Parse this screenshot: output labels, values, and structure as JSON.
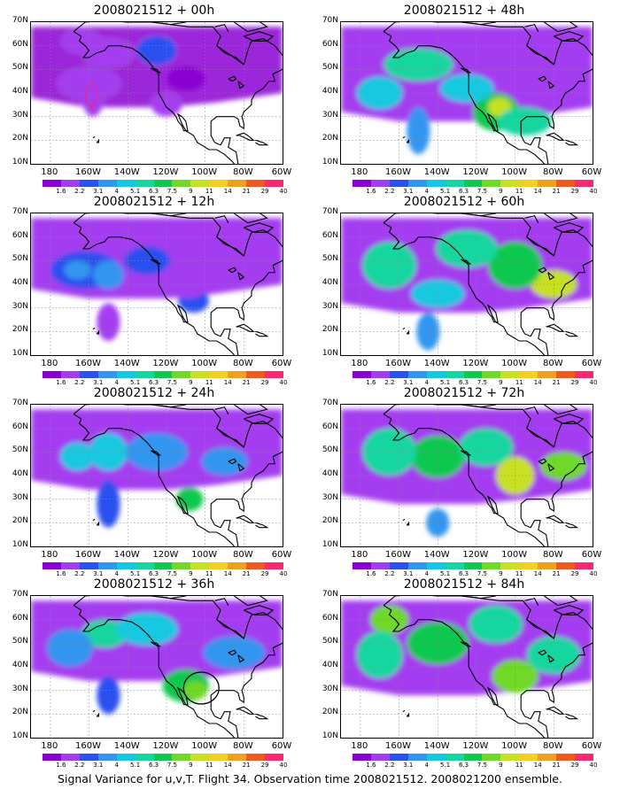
{
  "caption": "Signal Variance for u,v,T. Flight 34. Observation time 2008021512. 2008021200 ensemble.",
  "lat_labels": [
    "70N",
    "60N",
    "50N",
    "40N",
    "30N",
    "20N",
    "10N"
  ],
  "lon_labels": [
    "180",
    "160W",
    "140W",
    "120W",
    "100W",
    "80W",
    "60W"
  ],
  "colorbar": {
    "ticks": [
      "1.6",
      "2.2",
      "3.1",
      "4",
      "5.1",
      "6.3",
      "7.5",
      "9",
      "11",
      "14",
      "21",
      "29",
      "40"
    ],
    "colors": [
      "#ffffff",
      "#8a00d4",
      "#a43cf0",
      "#2a50f0",
      "#3296f0",
      "#14c8e0",
      "#14d6a0",
      "#10c850",
      "#70d828",
      "#c8e024",
      "#f0d020",
      "#f0a020",
      "#f05a1e",
      "#ff2870"
    ]
  },
  "panels": [
    {
      "title": "2008021512 + 00h",
      "level": 0,
      "blobs": [
        [
          -160,
          44,
          16,
          7,
          1
        ],
        [
          -125,
          58,
          10,
          6,
          2
        ],
        [
          -158,
          40,
          6,
          10,
          1
        ],
        [
          -150,
          57,
          14,
          6,
          1
        ],
        [
          -120,
          35,
          8,
          5,
          1
        ],
        [
          -164,
          62,
          10,
          5,
          1
        ],
        [
          -110,
          46,
          10,
          5,
          0
        ]
      ],
      "track": true,
      "circle": false
    },
    {
      "title": "2008021512 + 12h",
      "level": 1,
      "blobs": [
        [
          -162,
          46,
          18,
          8,
          2
        ],
        [
          -150,
          44,
          8,
          6,
          3
        ],
        [
          -166,
          46,
          7,
          4,
          3
        ],
        [
          -130,
          50,
          12,
          6,
          2
        ],
        [
          -106,
          33,
          8,
          5,
          2
        ],
        [
          -150,
          24,
          6,
          8,
          1
        ],
        [
          -110,
          40,
          12,
          6,
          1
        ]
      ],
      "track": false,
      "circle": false
    },
    {
      "title": "2008021512 + 24h",
      "level": 2,
      "blobs": [
        [
          -150,
          50,
          10,
          8,
          3
        ],
        [
          -166,
          48,
          9,
          6,
          3
        ],
        [
          -108,
          30,
          7,
          5,
          5
        ],
        [
          -125,
          50,
          16,
          8,
          2
        ],
        [
          -90,
          46,
          12,
          6,
          2
        ],
        [
          -150,
          28,
          6,
          10,
          1
        ]
      ],
      "track": false,
      "circle": false
    },
    {
      "title": "2008021512 + 36h",
      "level": 3,
      "blobs": [
        [
          -152,
          54,
          12,
          6,
          4
        ],
        [
          -110,
          32,
          12,
          7,
          5
        ],
        [
          -105,
          30,
          6,
          4,
          6
        ],
        [
          -130,
          56,
          16,
          7,
          3
        ],
        [
          -170,
          48,
          12,
          8,
          2
        ],
        [
          -150,
          28,
          6,
          8,
          1
        ],
        [
          -85,
          46,
          16,
          7,
          2
        ]
      ],
      "track": false,
      "circle": true
    },
    {
      "title": "2008021512 + 48h",
      "level": 4,
      "blobs": [
        [
          -110,
          32,
          12,
          8,
          4
        ],
        [
          -108,
          34,
          6,
          4,
          6
        ],
        [
          -150,
          52,
          18,
          7,
          3
        ],
        [
          -125,
          42,
          14,
          6,
          2
        ],
        [
          -95,
          28,
          14,
          6,
          3
        ],
        [
          -170,
          40,
          12,
          7,
          2
        ],
        [
          -150,
          24,
          6,
          10,
          1
        ]
      ],
      "track": false,
      "circle": false
    },
    {
      "title": "2008021512 + 60h",
      "level": 5,
      "blobs": [
        [
          -80,
          40,
          12,
          6,
          6
        ],
        [
          -100,
          48,
          14,
          10,
          4
        ],
        [
          -125,
          55,
          16,
          8,
          3
        ],
        [
          -165,
          48,
          14,
          10,
          3
        ],
        [
          -140,
          36,
          14,
          6,
          2
        ],
        [
          -145,
          20,
          6,
          8,
          1
        ]
      ],
      "track": false,
      "circle": false
    },
    {
      "title": "2008021512 + 72h",
      "level": 5,
      "blobs": [
        [
          -100,
          40,
          10,
          8,
          6
        ],
        [
          -140,
          48,
          14,
          9,
          4
        ],
        [
          -115,
          52,
          14,
          8,
          3
        ],
        [
          -75,
          44,
          12,
          6,
          5
        ],
        [
          -165,
          50,
          14,
          10,
          3
        ],
        [
          -140,
          20,
          6,
          6,
          1
        ]
      ],
      "track": false,
      "circle": false
    },
    {
      "title": "2008021512 + 84h",
      "level": 5,
      "blobs": [
        [
          -100,
          36,
          12,
          7,
          5
        ],
        [
          -140,
          50,
          16,
          9,
          4
        ],
        [
          -110,
          58,
          14,
          8,
          3
        ],
        [
          -165,
          60,
          10,
          6,
          5
        ],
        [
          -80,
          45,
          14,
          8,
          3
        ],
        [
          -170,
          45,
          12,
          10,
          3
        ]
      ],
      "track": false,
      "circle": false
    }
  ]
}
